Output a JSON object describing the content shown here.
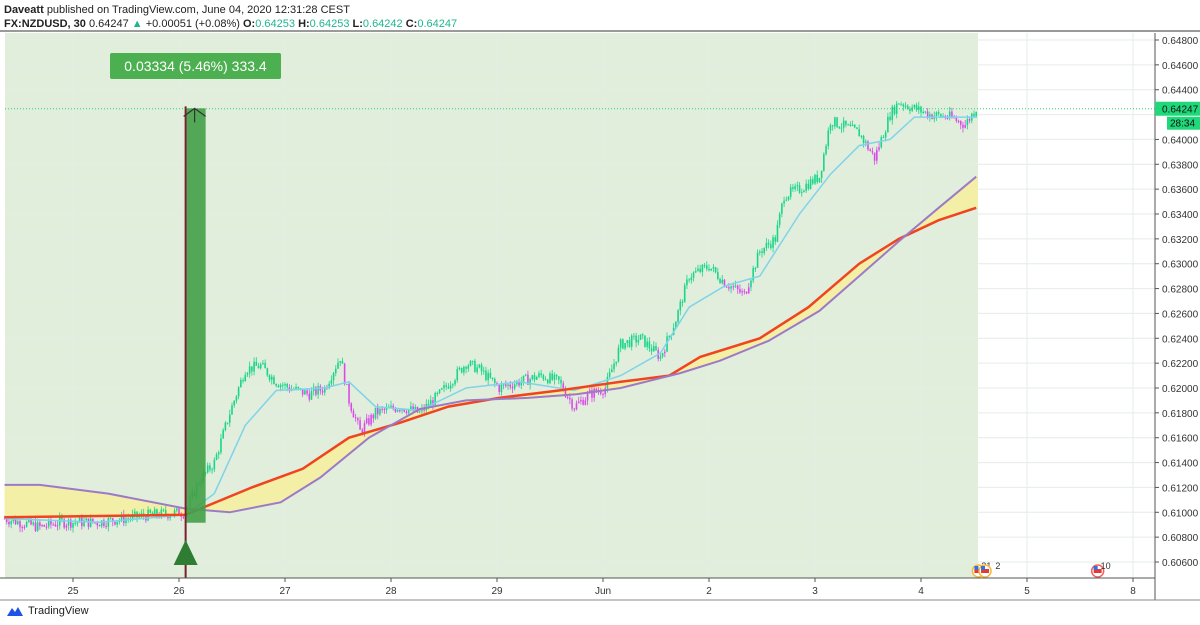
{
  "header": {
    "publisher": "Daveatt",
    "published_text": "published on TradingView.com, June 04, 2020 12:31:28 CEST",
    "symbol": "FX:NZDUSD, 30",
    "last": "0.64247",
    "change": "+0.00051 (+0.08%)",
    "o_label": "O:",
    "o": "0.64253",
    "h_label": "H:",
    "h": "0.64253",
    "l_label": "L:",
    "l": "0.64242",
    "c_label": "C:",
    "c": "0.64247"
  },
  "footer": {
    "brand": "TradingView"
  },
  "colors": {
    "up": "#19d58a",
    "down": "#d94be8",
    "fast_ma": "#7fd3ea",
    "ma_red": "#f0441f",
    "ma_purple": "#9c7ac7",
    "cloud": "#f6ee9c",
    "bg_shade": "#e0eedb",
    "measure": "#43a047",
    "cursor_line": "#7b1f2e"
  },
  "measure": {
    "label": "0.03334 (5.46%) 333.4",
    "from_price": 0.60916,
    "to_price": 0.6425,
    "time": "05-26 01:30"
  },
  "price_label": "0.64247",
  "countdown": "28:34",
  "events": [
    {
      "label": "31",
      "time": "06-04 13:00"
    },
    {
      "label": "2",
      "time": "06-04 14:30"
    },
    {
      "label": "10",
      "time": "06-05 16:00"
    },
    {
      "label": "",
      "time": "06-06 00:00"
    }
  ],
  "chart_data": {
    "type": "candlestick",
    "symbol": "FX:NZDUSD",
    "interval": "30",
    "y_ticks": [
      "0.60600",
      "0.60800",
      "0.61000",
      "0.61200",
      "0.61400",
      "0.61600",
      "0.61800",
      "0.62000",
      "0.62200",
      "0.62400",
      "0.62600",
      "0.62800",
      "0.63000",
      "0.63200",
      "0.63400",
      "0.63600",
      "0.63800",
      "0.64000",
      "0.64200",
      "0.64400",
      "0.64600",
      "0.64800"
    ],
    "ylim": [
      0.6055,
      0.6495
    ],
    "x_days": [
      "05-24",
      "05-25",
      "05-26",
      "05-27",
      "05-28",
      "05-29",
      "06-01",
      "06-02",
      "06-03",
      "06-04",
      "06-05",
      "06-08"
    ],
    "x_tick_labels": [
      "",
      "25",
      "26",
      "27",
      "28",
      "29",
      "Jun",
      "2",
      "3",
      "4",
      "5",
      "8"
    ],
    "price_path": [
      [
        "05-24 08:30",
        0.6095
      ],
      [
        "05-24 16:30",
        0.6088
      ],
      [
        "05-24 21:00",
        0.6092
      ],
      [
        "05-25 06:00",
        0.6092
      ],
      [
        "05-25 17:30",
        0.6098
      ],
      [
        "05-26 01:30",
        0.61
      ],
      [
        "05-26 04:30",
        0.6125
      ],
      [
        "05-26 08:00",
        0.614
      ],
      [
        "05-26 11:30",
        0.618
      ],
      [
        "05-26 15:00",
        0.6215
      ],
      [
        "05-26 18:30",
        0.6218
      ],
      [
        "05-26 22:00",
        0.6205
      ],
      [
        "05-27 01:00",
        0.62
      ],
      [
        "05-27 05:30",
        0.6195
      ],
      [
        "05-27 09:00",
        0.62
      ],
      [
        "05-27 12:30",
        0.6225
      ],
      [
        "05-27 14:30",
        0.619
      ],
      [
        "05-27 17:00",
        0.6165
      ],
      [
        "05-27 20:30",
        0.618
      ],
      [
        "05-28 02:00",
        0.6185
      ],
      [
        "05-28 06:30",
        0.618
      ],
      [
        "05-28 11:00",
        0.6195
      ],
      [
        "05-28 17:00",
        0.622
      ],
      [
        "05-28 20:00",
        0.6215
      ],
      [
        "05-29 00:30",
        0.62
      ],
      [
        "05-29 05:00",
        0.6205
      ],
      [
        "05-29 10:00",
        0.621
      ],
      [
        "05-29 14:00",
        0.6205
      ],
      [
        "05-29 17:30",
        0.6185
      ],
      [
        "05-29 21:00",
        0.6195
      ],
      [
        "06-01 00:30",
        0.62
      ],
      [
        "06-01 04:00",
        0.6235
      ],
      [
        "06-01 08:30",
        0.624
      ],
      [
        "06-01 13:00",
        0.6225
      ],
      [
        "06-01 16:30",
        0.6255
      ],
      [
        "06-01 19:30",
        0.629
      ],
      [
        "06-02 00:00",
        0.6298
      ],
      [
        "06-02 03:30",
        0.6285
      ],
      [
        "06-02 08:00",
        0.6275
      ],
      [
        "06-02 11:30",
        0.631
      ],
      [
        "06-02 15:00",
        0.632
      ],
      [
        "06-02 17:00",
        0.6355
      ],
      [
        "06-02 20:30",
        0.636
      ],
      [
        "06-03 01:00",
        0.637
      ],
      [
        "06-03 03:30",
        0.6415
      ],
      [
        "06-03 07:00",
        0.641
      ],
      [
        "06-03 10:00",
        0.6405
      ],
      [
        "06-03 13:30",
        0.6385
      ],
      [
        "06-03 17:00",
        0.642
      ],
      [
        "06-03 19:00",
        0.643
      ],
      [
        "06-03 22:30",
        0.6425
      ],
      [
        "06-04 02:00",
        0.642
      ],
      [
        "06-04 06:30",
        0.6418
      ],
      [
        "06-04 10:00",
        0.6412
      ],
      [
        "06-04 12:30",
        0.6425
      ]
    ],
    "ma_fast": [
      [
        "05-24 08:30",
        0.6095
      ],
      [
        "05-25 06:00",
        0.6092
      ],
      [
        "05-26 01:30",
        0.6098
      ],
      [
        "05-26 08:00",
        0.6115
      ],
      [
        "05-26 15:00",
        0.617
      ],
      [
        "05-26 22:00",
        0.6198
      ],
      [
        "05-27 09:00",
        0.62
      ],
      [
        "05-27 14:30",
        0.6205
      ],
      [
        "05-27 20:30",
        0.6185
      ],
      [
        "05-28 06:30",
        0.6182
      ],
      [
        "05-28 17:00",
        0.62
      ],
      [
        "05-29 05:00",
        0.6205
      ],
      [
        "05-29 17:30",
        0.6198
      ],
      [
        "06-01 04:00",
        0.621
      ],
      [
        "06-01 13:00",
        0.6228
      ],
      [
        "06-01 19:30",
        0.6265
      ],
      [
        "06-02 03:30",
        0.6282
      ],
      [
        "06-02 11:30",
        0.629
      ],
      [
        "06-02 20:30",
        0.634
      ],
      [
        "06-03 03:30",
        0.6372
      ],
      [
        "06-03 10:00",
        0.6395
      ],
      [
        "06-03 17:00",
        0.64
      ],
      [
        "06-03 22:30",
        0.6418
      ],
      [
        "06-04 06:30",
        0.6418
      ],
      [
        "06-04 12:30",
        0.6418
      ]
    ],
    "ma_red": [
      [
        "05-24 08:30",
        0.6096
      ],
      [
        "05-26 01:30",
        0.6098
      ],
      [
        "05-26 16:30",
        0.612
      ],
      [
        "05-27 04:00",
        0.6135
      ],
      [
        "05-27 14:30",
        0.616
      ],
      [
        "05-28 02:00",
        0.6172
      ],
      [
        "05-28 13:00",
        0.6185
      ],
      [
        "05-29 00:30",
        0.6192
      ],
      [
        "05-29 14:00",
        0.6198
      ],
      [
        "06-01 04:00",
        0.6205
      ],
      [
        "06-01 15:00",
        0.621
      ],
      [
        "06-01 22:00",
        0.6225
      ],
      [
        "06-02 11:30",
        0.624
      ],
      [
        "06-02 22:30",
        0.6265
      ],
      [
        "06-03 10:00",
        0.63
      ],
      [
        "06-03 19:00",
        0.632
      ],
      [
        "06-04 04:00",
        0.6335
      ],
      [
        "06-04 12:30",
        0.6345
      ]
    ],
    "ma_purple": [
      [
        "05-24 08:30",
        0.6122
      ],
      [
        "05-24 16:30",
        0.6122
      ],
      [
        "05-25 08:00",
        0.6115
      ],
      [
        "05-26 01:30",
        0.6103
      ],
      [
        "05-26 11:30",
        0.61
      ],
      [
        "05-26 23:00",
        0.6108
      ],
      [
        "05-27 08:00",
        0.6128
      ],
      [
        "05-27 19:00",
        0.616
      ],
      [
        "05-28 06:30",
        0.6183
      ],
      [
        "05-28 17:00",
        0.619
      ],
      [
        "05-29 07:00",
        0.6192
      ],
      [
        "05-29 18:00",
        0.6195
      ],
      [
        "06-01 04:00",
        0.62
      ],
      [
        "06-01 17:30",
        0.6212
      ],
      [
        "06-02 02:30",
        0.6222
      ],
      [
        "06-02 13:30",
        0.6238
      ],
      [
        "06-03 01:00",
        0.6262
      ],
      [
        "06-03 10:00",
        0.629
      ],
      [
        "06-03 19:00",
        0.6318
      ],
      [
        "06-04 04:00",
        0.6345
      ],
      [
        "06-04 12:30",
        0.637
      ]
    ]
  }
}
